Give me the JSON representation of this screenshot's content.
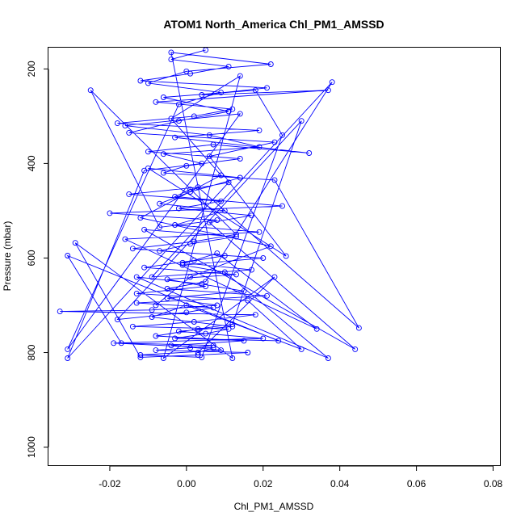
{
  "chart_data": {
    "type": "scatter",
    "title": "ATOM1 North_America Chl_PM1_AMSSD",
    "xlabel": "Chl_PM1_AMSSD",
    "ylabel": "Pressure (mbar)",
    "xlim": [
      -0.036,
      0.082
    ],
    "ylim": [
      1040,
      155
    ],
    "y_reversed": true,
    "x_ticks": [
      -0.02,
      0.0,
      0.02,
      0.04,
      0.06,
      0.08
    ],
    "x_tick_labels": [
      "-0.02",
      "0.00",
      "0.02",
      "0.04",
      "0.06",
      "0.08"
    ],
    "y_ticks": [
      200,
      400,
      600,
      800,
      1000
    ],
    "y_tick_labels": [
      "200",
      "400",
      "600",
      "800",
      "1000"
    ],
    "marker": "open-circle",
    "connected": true,
    "grid": false,
    "legend": "none",
    "color": "#0000ff",
    "series": [
      {
        "x": [
          0.005,
          -0.004,
          0.011,
          0.001,
          -0.012,
          0.021,
          0.004,
          -0.008,
          0.012,
          0.002,
          -0.018,
          0.019,
          -0.003,
          0.007,
          -0.01,
          0.014,
          0.0,
          -0.006,
          0.023,
          0.003,
          -0.015,
          0.009,
          -0.002,
          0.017,
          0.006,
          -0.011,
          0.013,
          0.001,
          -0.007,
          0.02,
          -0.001,
          0.01,
          -0.013,
          0.004,
          0.015,
          -0.005,
          0.008,
          -0.009,
          0.018,
          0.002,
          -0.014,
          0.011,
          0.005,
          -0.003,
          0.024,
          -0.017,
          0.007,
          0.001,
          -0.008,
          0.016,
          0.003,
          -0.012,
          0.012,
          -0.004,
          0.022,
          0.0,
          -0.01,
          0.009,
          -0.002,
          0.014,
          -0.016,
          0.006,
          0.019,
          -0.006,
          0.004,
          -0.011,
          0.011,
          0.001,
          -0.003,
          0.025,
          -0.02,
          0.008,
          -0.007,
          0.013,
          0.002,
          -0.014,
          0.01,
          -0.001,
          0.017,
          -0.009,
          0.005,
          -0.005,
          0.021,
          -0.013,
          0.007,
          0.0,
          -0.018,
          0.012,
          0.003,
          -0.008,
          0.015,
          -0.004,
          0.009,
          -0.012,
          0.004,
          0.018,
          -0.006,
          0.011,
          -0.002,
          -0.015,
          0.023,
          0.006,
          -0.01,
          0.014,
          0.001,
          -0.007,
          0.01,
          -0.003,
          0.019,
          -0.016,
          0.008,
          0.002,
          -0.011,
          0.013,
          -0.005,
          0.005,
          -0.013,
          0.016,
          0.0,
          -0.009,
          0.012,
          -0.002,
          0.02,
          -0.019,
          0.007,
          0.003,
          -0.006,
          0.014,
          -0.004,
          0.009,
          -0.012,
          0.022,
          0.001,
          -0.008
        ],
        "y": [
          160,
          180,
          195,
          210,
          225,
          240,
          255,
          270,
          285,
          300,
          315,
          330,
          345,
          360,
          375,
          390,
          405,
          420,
          435,
          450,
          465,
          480,
          495,
          510,
          525,
          540,
          555,
          570,
          585,
          600,
          615,
          630,
          640,
          655,
          670,
          685,
          700,
          710,
          720,
          735,
          745,
          750,
          760,
          770,
          775,
          780,
          785,
          790,
          795,
          800,
          805,
          810,
          812,
          165,
          190,
          205,
          230,
          250,
          275,
          295,
          320,
          340,
          365,
          380,
          400,
          415,
          440,
          455,
          470,
          490,
          505,
          520,
          535,
          550,
          565,
          580,
          595,
          610,
          625,
          640,
          650,
          665,
          680,
          695,
          705,
          715,
          730,
          740,
          750,
          765,
          775,
          785,
          795,
          805,
          810,
          245,
          260,
          290,
          310,
          335,
          355,
          385,
          410,
          430,
          460,
          485,
          500,
          530,
          545,
          560,
          590,
          605,
          620,
          635,
          645,
          660,
          675,
          690,
          700,
          725,
          745,
          755,
          770,
          780,
          790,
          800,
          812,
          215,
          305,
          425,
          515,
          575,
          640,
          700
        ],
        "extra_points": [
          {
            "x": 0.037,
            "y": 245
          },
          {
            "x": 0.032,
            "y": 378
          },
          {
            "x": 0.045,
            "y": 748
          },
          {
            "x": 0.044,
            "y": 793
          },
          {
            "x": 0.037,
            "y": 812
          },
          {
            "x": -0.033,
            "y": 713
          },
          {
            "x": -0.031,
            "y": 595
          },
          {
            "x": -0.029,
            "y": 568
          },
          {
            "x": -0.031,
            "y": 793
          },
          {
            "x": -0.031,
            "y": 812
          },
          {
            "x": -0.025,
            "y": 245
          },
          {
            "x": 0.038,
            "y": 228
          },
          {
            "x": 0.03,
            "y": 310
          },
          {
            "x": 0.025,
            "y": 340
          },
          {
            "x": 0.026,
            "y": 596
          },
          {
            "x": 0.034,
            "y": 750
          },
          {
            "x": 0.03,
            "y": 793
          },
          {
            "x": 0.023,
            "y": 640
          }
        ]
      }
    ]
  }
}
